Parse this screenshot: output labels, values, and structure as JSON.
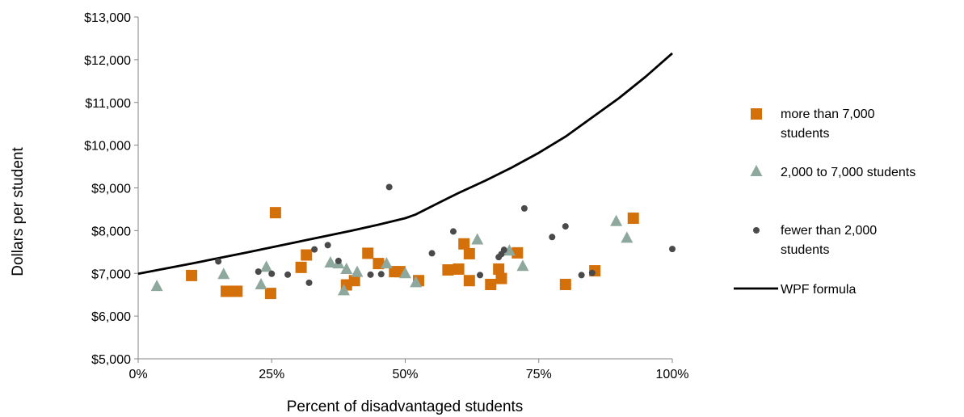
{
  "chart_data": {
    "type": "scatter",
    "title": "",
    "xlabel": "Percent of disadvantaged students",
    "ylabel": "Dollars per student",
    "xlim": [
      0,
      100
    ],
    "ylim": [
      5000,
      13000
    ],
    "x_ticks": [
      0,
      25,
      50,
      75,
      100
    ],
    "x_tick_labels": [
      "0%",
      "25%",
      "50%",
      "75%",
      "100%"
    ],
    "y_ticks": [
      5000,
      6000,
      7000,
      8000,
      9000,
      10000,
      11000,
      12000,
      13000
    ],
    "y_tick_labels": [
      "$5,000",
      "$6,000",
      "$7,000",
      "$8,000",
      "$9,000",
      "$10,000",
      "$11,000",
      "$12,000",
      "$13,000"
    ],
    "grid": false,
    "legend_position": "right",
    "series": [
      {
        "name": "more than 7,000 students",
        "legend_lines": [
          "more than 7,000",
          "students"
        ],
        "marker": "square",
        "color": "#D4700A",
        "points": [
          [
            10,
            6950
          ],
          [
            16.5,
            6580
          ],
          [
            18.5,
            6580
          ],
          [
            24.8,
            6530
          ],
          [
            25.7,
            8420
          ],
          [
            30.5,
            7140
          ],
          [
            31.5,
            7430
          ],
          [
            39,
            6730
          ],
          [
            40.5,
            6830
          ],
          [
            43,
            7470
          ],
          [
            45,
            7230
          ],
          [
            48,
            7040
          ],
          [
            49,
            7040
          ],
          [
            52.5,
            6830
          ],
          [
            58,
            7080
          ],
          [
            60,
            7100
          ],
          [
            61,
            7690
          ],
          [
            62,
            7460
          ],
          [
            62,
            6830
          ],
          [
            66,
            6740
          ],
          [
            67.5,
            7100
          ],
          [
            68,
            6880
          ],
          [
            71,
            7480
          ],
          [
            80,
            6740
          ],
          [
            85.5,
            7060
          ],
          [
            92.7,
            8290
          ]
        ]
      },
      {
        "name": "2,000 to 7,000 students",
        "legend_lines": [
          "2,000 to 7,000 students"
        ],
        "marker": "triangle",
        "color": "#8FA89D",
        "points": [
          [
            3.5,
            6700
          ],
          [
            16,
            6980
          ],
          [
            23,
            6740
          ],
          [
            24,
            7150
          ],
          [
            36,
            7250
          ],
          [
            37.5,
            7230
          ],
          [
            38.5,
            6600
          ],
          [
            39,
            7100
          ],
          [
            41,
            7030
          ],
          [
            46.5,
            7230
          ],
          [
            50,
            7000
          ],
          [
            52,
            6790
          ],
          [
            63.5,
            7790
          ],
          [
            69.5,
            7530
          ],
          [
            72,
            7170
          ],
          [
            89.5,
            8220
          ],
          [
            91.5,
            7830
          ]
        ]
      },
      {
        "name": "fewer than 2,000 students",
        "legend_lines": [
          "fewer than 2,000",
          "students"
        ],
        "marker": "circle",
        "color": "#4A4A4A",
        "points": [
          [
            15,
            7280
          ],
          [
            22.5,
            7040
          ],
          [
            25,
            6990
          ],
          [
            28,
            6970
          ],
          [
            32,
            6780
          ],
          [
            33,
            7560
          ],
          [
            35.5,
            7660
          ],
          [
            37.5,
            7290
          ],
          [
            43.5,
            6970
          ],
          [
            45.5,
            6980
          ],
          [
            47,
            9020
          ],
          [
            55,
            7470
          ],
          [
            59,
            7980
          ],
          [
            64,
            6960
          ],
          [
            67.5,
            7380
          ],
          [
            68,
            7450
          ],
          [
            68.5,
            7550
          ],
          [
            72.3,
            8520
          ],
          [
            77.5,
            7850
          ],
          [
            80,
            8100
          ],
          [
            83,
            6960
          ],
          [
            85,
            7010
          ],
          [
            100,
            7570
          ]
        ]
      }
    ],
    "lines": [
      {
        "name": "WPF formula",
        "legend_lines": [
          "WPF formula"
        ],
        "color": "#000000",
        "points": [
          [
            0,
            6990
          ],
          [
            10,
            7230
          ],
          [
            20,
            7480
          ],
          [
            30,
            7740
          ],
          [
            40,
            8000
          ],
          [
            45,
            8140
          ],
          [
            50,
            8290
          ],
          [
            52,
            8380
          ],
          [
            55,
            8570
          ],
          [
            58,
            8760
          ],
          [
            60,
            8880
          ],
          [
            65,
            9170
          ],
          [
            70,
            9480
          ],
          [
            75,
            9820
          ],
          [
            80,
            10200
          ],
          [
            85,
            10650
          ],
          [
            90,
            11100
          ],
          [
            95,
            11600
          ],
          [
            100,
            12150
          ]
        ]
      }
    ]
  }
}
